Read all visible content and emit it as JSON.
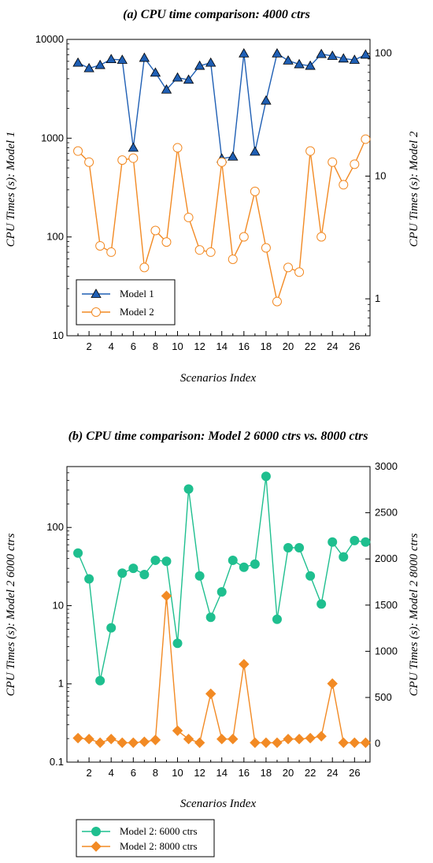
{
  "chart_data": [
    {
      "type": "line",
      "title": "(a) CPU time comparison: 4000 ctrs",
      "xlabel": "Scenarios Index",
      "ylabel": "CPU Times (s): Model 1",
      "y2label": "CPU Times (s): Model 2",
      "y_scale": "log",
      "y2_scale": "log",
      "xlim": [
        0,
        27.4
      ],
      "ylim": [
        10,
        10000
      ],
      "y2lim": [
        0.5,
        130
      ],
      "x_ticks": [
        "2",
        "4",
        "6",
        "8",
        "10",
        "12",
        "14",
        "16",
        "18",
        "20",
        "22",
        "24",
        "26"
      ],
      "y_ticks": [
        "10",
        "100",
        "1000",
        "10000"
      ],
      "y2_ticks": [
        "1",
        "10",
        "100"
      ],
      "legend_position": "bottom-left",
      "x": [
        1,
        2,
        3,
        4,
        5,
        6,
        7,
        8,
        9,
        10,
        11,
        12,
        13,
        14,
        15,
        16,
        17,
        18,
        19,
        20,
        21,
        22,
        23,
        24,
        25,
        26,
        27
      ],
      "series": [
        {
          "name": "Model 1",
          "axis": "left",
          "color": "#1f5fb4",
          "marker": "triangle",
          "values": [
            5800,
            5100,
            5500,
            6300,
            6200,
            800,
            6500,
            4600,
            3100,
            4100,
            3900,
            5400,
            5800,
            620,
            650,
            7200,
            730,
            2400,
            7200,
            6100,
            5600,
            5400,
            7100,
            6800,
            6400,
            6200,
            7000
          ]
        },
        {
          "name": "Model 2",
          "axis": "right",
          "color": "#f28a24",
          "marker": "circle",
          "values": [
            16,
            13,
            2.7,
            2.4,
            13.5,
            14,
            1.8,
            3.6,
            2.9,
            17,
            4.6,
            2.5,
            2.4,
            13,
            2.1,
            3.2,
            7.5,
            2.6,
            0.95,
            1.8,
            1.65,
            16,
            3.2,
            13,
            8.5,
            12.5,
            20
          ]
        }
      ]
    },
    {
      "type": "line",
      "title": "(b) CPU time comparison: Model 2 6000 ctrs vs. 8000 ctrs",
      "xlabel": "Scenarios Index",
      "ylabel": "CPU Times (s): Model 2 6000 ctrs",
      "y2label": "CPU Times (s): Model 2 8000 ctrs",
      "y_scale": "log",
      "y2_scale": "linear",
      "xlim": [
        0,
        27.4
      ],
      "ylim": [
        0.1,
        600
      ],
      "y2lim": [
        -200,
        3000
      ],
      "x_ticks": [
        "2",
        "4",
        "6",
        "8",
        "10",
        "12",
        "14",
        "16",
        "18",
        "20",
        "22",
        "24",
        "26"
      ],
      "y_ticks": [
        "0.1",
        "1",
        "10",
        "100"
      ],
      "y2_ticks": [
        "0",
        "500",
        "1000",
        "1500",
        "2000",
        "2500",
        "3000"
      ],
      "legend_position": "below",
      "x": [
        1,
        2,
        3,
        4,
        5,
        6,
        7,
        8,
        9,
        10,
        11,
        12,
        13,
        14,
        15,
        16,
        17,
        18,
        19,
        20,
        21,
        22,
        23,
        24,
        25,
        26,
        27
      ],
      "series": [
        {
          "name": "Model 2: 6000 ctrs",
          "axis": "left",
          "color": "#1fbf8f",
          "marker": "circle",
          "values": [
            47,
            22,
            1.1,
            5.2,
            26,
            30,
            25,
            38,
            37,
            3.3,
            310,
            24,
            7.1,
            15,
            38,
            31,
            34,
            450,
            6.7,
            55,
            55,
            24,
            10.5,
            65,
            42,
            68,
            65
          ]
        },
        {
          "name": "Model 2: 8000 ctrs",
          "axis": "right",
          "color": "#f28a24",
          "marker": "diamond",
          "values": [
            60,
            50,
            10,
            50,
            10,
            10,
            20,
            40,
            1600,
            140,
            50,
            10,
            540,
            50,
            50,
            860,
            10,
            10,
            10,
            50,
            50,
            60,
            80,
            650,
            10,
            10,
            10
          ]
        }
      ]
    }
  ]
}
